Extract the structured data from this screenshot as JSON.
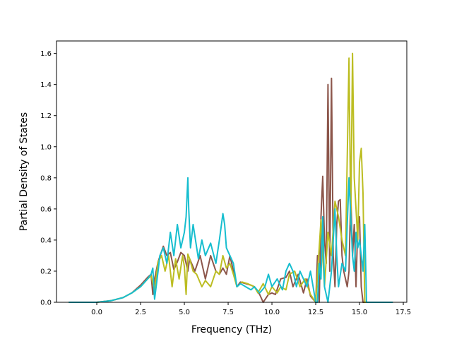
{
  "chart_data": {
    "type": "line",
    "title": "",
    "xlabel": "Frequency (THz)",
    "ylabel": "Partial Density of States",
    "xlim": [
      -2.3,
      17.7
    ],
    "ylim": [
      0,
      1.68
    ],
    "xticks": [
      0,
      2.5,
      5,
      7.5,
      10,
      12.5,
      15,
      17.5
    ],
    "xtick_labels": [
      "0.0",
      "2.5",
      "5.0",
      "7.5",
      "10.0",
      "12.5",
      "15.0",
      "17.5"
    ],
    "yticks": [
      0,
      0.2,
      0.4,
      0.6,
      0.8,
      1.0,
      1.2,
      1.4,
      1.6
    ],
    "ytick_labels": [
      "0.0",
      "0.2",
      "0.4",
      "0.6",
      "0.8",
      "1.0",
      "1.2",
      "1.4",
      "1.6"
    ],
    "grid": false,
    "legend": "none",
    "series": [
      {
        "color": "#8c564b",
        "x": [
          -1.6,
          0,
          0.8,
          1.5,
          2.0,
          2.5,
          2.9,
          3.1,
          3.2,
          3.3,
          3.5,
          3.8,
          4.0,
          4.2,
          4.4,
          4.6,
          4.8,
          5.0,
          5.2,
          5.3,
          5.6,
          5.9,
          6.2,
          6.5,
          6.8,
          7.0,
          7.2,
          7.4,
          7.6,
          7.8,
          8.0,
          8.2,
          8.5,
          8.8,
          9.0,
          9.3,
          9.5,
          9.8,
          10.0,
          10.2,
          10.5,
          10.8,
          11.0,
          11.2,
          11.5,
          11.8,
          12.0,
          12.2,
          12.5,
          12.6,
          12.7,
          12.8,
          12.9,
          13.0,
          13.1,
          13.2,
          13.3,
          13.4,
          13.5,
          13.6,
          13.7,
          13.8,
          13.9,
          14.0,
          14.1,
          14.3,
          14.4,
          14.5,
          14.6,
          14.7,
          14.8,
          14.9,
          15.0,
          15.1,
          15.2,
          15.3,
          15.4,
          15.6,
          16.9
        ],
        "y": [
          0,
          0,
          0.01,
          0.03,
          0.06,
          0.11,
          0.16,
          0.18,
          0.05,
          0.15,
          0.26,
          0.36,
          0.3,
          0.32,
          0.21,
          0.26,
          0.32,
          0.3,
          0.2,
          0.28,
          0.2,
          0.3,
          0.15,
          0.3,
          0.2,
          0.18,
          0.22,
          0.18,
          0.3,
          0.2,
          0.1,
          0.13,
          0.12,
          0.11,
          0.1,
          0.05,
          0.0,
          0.05,
          0.06,
          0.05,
          0.15,
          0.16,
          0.2,
          0.1,
          0.18,
          0.06,
          0.15,
          0.04,
          0.0,
          0.3,
          0.0,
          0.55,
          0.81,
          0.4,
          0.25,
          1.4,
          0.2,
          1.44,
          0.3,
          0.1,
          0.5,
          0.65,
          0.66,
          0.3,
          0.2,
          0.1,
          0.2,
          0.7,
          0.3,
          0.5,
          0.1,
          0.5,
          0.55,
          0.1,
          0.0,
          0,
          0,
          0,
          0
        ]
      },
      {
        "color": "#bcbd22",
        "x": [
          -1.6,
          0,
          0.8,
          1.5,
          2.0,
          2.5,
          2.9,
          3.1,
          3.3,
          3.5,
          3.7,
          3.9,
          4.1,
          4.3,
          4.5,
          4.7,
          4.9,
          5.0,
          5.1,
          5.2,
          5.3,
          5.5,
          5.7,
          6.0,
          6.2,
          6.5,
          6.8,
          7.0,
          7.2,
          7.4,
          7.6,
          7.8,
          8.0,
          8.3,
          8.6,
          9.0,
          9.2,
          9.5,
          9.8,
          10.0,
          10.3,
          10.5,
          10.8,
          11.0,
          11.3,
          11.6,
          11.9,
          12.2,
          12.5,
          12.7,
          12.8,
          12.9,
          13.0,
          13.2,
          13.4,
          13.6,
          13.8,
          14.0,
          14.2,
          14.4,
          14.5,
          14.6,
          14.7,
          14.8,
          14.9,
          15.0,
          15.1,
          15.2,
          15.3,
          15.4,
          15.6,
          16.9
        ],
        "y": [
          0,
          0,
          0.01,
          0.03,
          0.06,
          0.1,
          0.15,
          0.17,
          0.08,
          0.26,
          0.3,
          0.2,
          0.3,
          0.1,
          0.28,
          0.15,
          0.3,
          0.23,
          0.05,
          0.31,
          0.28,
          0.2,
          0.18,
          0.1,
          0.14,
          0.1,
          0.2,
          0.18,
          0.3,
          0.22,
          0.25,
          0.18,
          0.1,
          0.13,
          0.12,
          0.1,
          0.06,
          0.12,
          0.05,
          0.1,
          0.06,
          0.1,
          0.08,
          0.18,
          0.2,
          0.1,
          0.15,
          0.05,
          0.0,
          0.35,
          0.53,
          0.3,
          0.1,
          0.45,
          0.3,
          0.65,
          0.55,
          0.4,
          0.3,
          1.57,
          0.5,
          1.6,
          0.8,
          0.6,
          0.4,
          0.9,
          0.99,
          0.7,
          0.0,
          0,
          0,
          0
        ]
      },
      {
        "color": "#17becf",
        "x": [
          -1.6,
          0,
          0.8,
          1.5,
          2.0,
          2.5,
          2.9,
          3.1,
          3.2,
          3.3,
          3.5,
          3.6,
          3.8,
          4.0,
          4.2,
          4.4,
          4.6,
          4.8,
          5.0,
          5.1,
          5.2,
          5.25,
          5.35,
          5.5,
          5.8,
          6.0,
          6.2,
          6.5,
          6.8,
          7.0,
          7.2,
          7.3,
          7.4,
          7.6,
          7.8,
          8.0,
          8.2,
          8.5,
          8.8,
          9.0,
          9.3,
          9.6,
          9.8,
          10.0,
          10.3,
          10.6,
          10.8,
          11.0,
          11.2,
          11.4,
          11.6,
          11.8,
          12.0,
          12.2,
          12.5,
          12.6,
          12.7,
          12.8,
          12.9,
          13.0,
          13.2,
          13.4,
          13.6,
          13.7,
          13.8,
          14.0,
          14.2,
          14.4,
          14.5,
          14.6,
          14.7,
          14.8,
          14.9,
          15.0,
          15.1,
          15.2,
          15.3,
          15.4,
          15.6,
          16.9
        ],
        "y": [
          0,
          0,
          0.01,
          0.03,
          0.06,
          0.1,
          0.15,
          0.18,
          0.22,
          0.02,
          0.2,
          0.3,
          0.35,
          0.25,
          0.45,
          0.3,
          0.5,
          0.35,
          0.45,
          0.55,
          0.8,
          0.6,
          0.35,
          0.5,
          0.28,
          0.4,
          0.3,
          0.38,
          0.25,
          0.4,
          0.57,
          0.5,
          0.35,
          0.3,
          0.25,
          0.1,
          0.12,
          0.1,
          0.08,
          0.1,
          0.06,
          0.1,
          0.18,
          0.1,
          0.15,
          0.08,
          0.2,
          0.25,
          0.2,
          0.1,
          0.2,
          0.15,
          0.1,
          0.2,
          0.0,
          0.0,
          0.25,
          0.15,
          0.55,
          0.1,
          0.0,
          0.2,
          0.6,
          0.3,
          0.1,
          0.25,
          0.2,
          0.8,
          0.55,
          0.3,
          0.2,
          0.45,
          0.35,
          0.4,
          0.3,
          0.2,
          0.5,
          0.0,
          0,
          0
        ]
      }
    ]
  }
}
